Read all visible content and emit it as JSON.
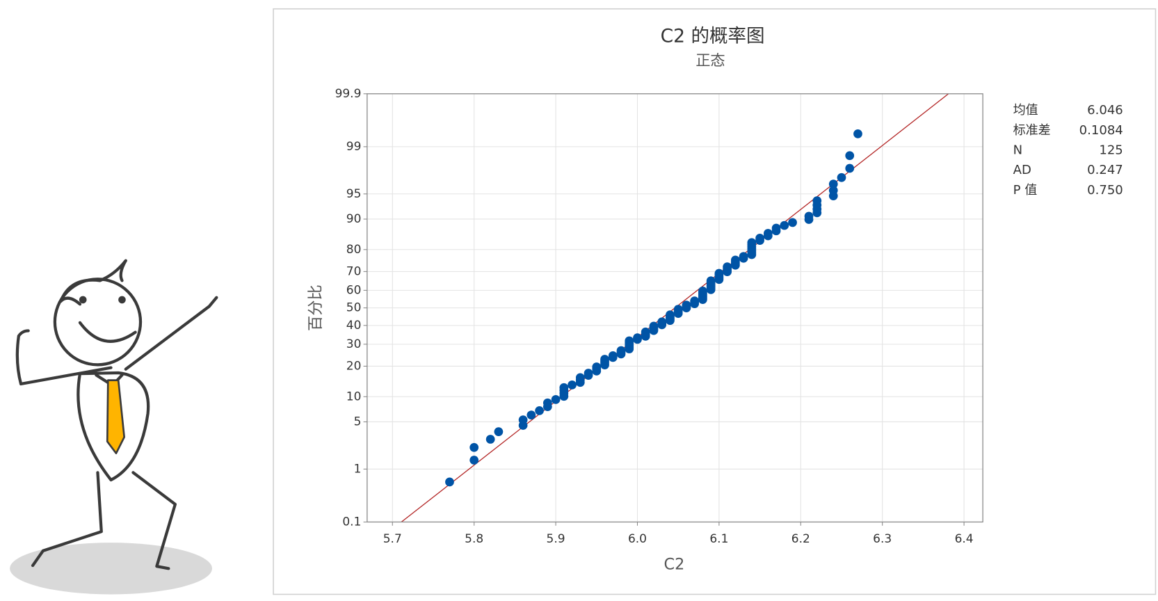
{
  "chart_data": {
    "type": "probability",
    "title": "C2 的概率图",
    "subtitle": "正态",
    "x_label": "C2",
    "y_label": "百分比",
    "x": [
      5.77,
      5.8,
      5.8,
      5.82,
      5.83,
      5.86,
      5.86,
      5.87,
      5.88,
      5.89,
      5.89,
      5.9,
      5.91,
      5.91,
      5.91,
      5.91,
      5.92,
      5.93,
      5.93,
      5.93,
      5.94,
      5.94,
      5.95,
      5.95,
      5.95,
      5.96,
      5.96,
      5.96,
      5.96,
      5.97,
      5.97,
      5.98,
      5.98,
      5.98,
      5.99,
      5.99,
      5.99,
      5.99,
      5.99,
      5.99,
      6.0,
      6.0,
      6.01,
      6.01,
      6.01,
      6.01,
      6.02,
      6.02,
      6.02,
      6.02,
      6.03,
      6.03,
      6.03,
      6.04,
      6.04,
      6.04,
      6.04,
      6.04,
      6.05,
      6.05,
      6.05,
      6.05,
      6.06,
      6.06,
      6.06,
      6.07,
      6.07,
      6.07,
      6.08,
      6.08,
      6.08,
      6.08,
      6.08,
      6.08,
      6.08,
      6.09,
      6.09,
      6.09,
      6.09,
      6.09,
      6.09,
      6.09,
      6.1,
      6.1,
      6.1,
      6.1,
      6.1,
      6.11,
      6.11,
      6.11,
      6.11,
      6.12,
      6.12,
      6.12,
      6.12,
      6.13,
      6.13,
      6.14,
      6.14,
      6.14,
      6.14,
      6.14,
      6.14,
      6.14,
      6.15,
      6.15,
      6.16,
      6.16,
      6.17,
      6.17,
      6.18,
      6.19,
      6.21,
      6.21,
      6.22,
      6.22,
      6.22,
      6.22,
      6.24,
      6.24,
      6.24,
      6.25,
      6.26,
      6.26,
      6.27
    ],
    "series": [
      {
        "color": "#0054a6",
        "values": [
          0.6,
          1.4,
          2.2,
          2.9,
          3.7,
          4.5,
          5.3,
          6.1,
          6.9,
          7.7,
          8.5,
          9.3,
          10.1,
          10.9,
          11.7,
          12.5,
          13.3,
          14.1,
          14.9,
          15.7,
          16.5,
          17.3,
          18.1,
          18.9,
          19.7,
          20.5,
          21.3,
          22.1,
          22.9,
          23.7,
          24.5,
          25.3,
          26.1,
          26.9,
          27.7,
          28.5,
          29.3,
          30.1,
          30.9,
          31.7,
          32.5,
          33.3,
          34.1,
          34.8,
          35.6,
          36.4,
          37.2,
          38.0,
          38.8,
          39.6,
          40.4,
          41.2,
          42.0,
          42.8,
          43.6,
          44.4,
          45.2,
          46.0,
          46.8,
          47.6,
          48.4,
          49.2,
          50.0,
          50.8,
          51.6,
          52.4,
          53.2,
          54.0,
          54.8,
          55.6,
          56.4,
          57.2,
          58.0,
          58.8,
          59.6,
          60.4,
          61.2,
          62.0,
          62.8,
          63.6,
          64.4,
          65.2,
          65.9,
          66.7,
          67.5,
          68.3,
          69.1,
          69.9,
          70.7,
          71.5,
          72.3,
          73.1,
          73.9,
          74.7,
          75.5,
          76.3,
          77.1,
          77.9,
          78.7,
          79.5,
          80.3,
          81.1,
          81.9,
          82.7,
          83.5,
          84.3,
          85.1,
          85.9,
          86.7,
          87.5,
          88.3,
          89.1,
          89.9,
          90.7,
          91.5,
          92.3,
          93.1,
          93.9,
          94.7,
          95.5,
          96.3,
          97.0,
          97.8,
          98.6,
          99.4
        ]
      }
    ],
    "fit_line": {
      "x": [
        5.711,
        6.381
      ],
      "y": [
        0.1,
        99.9
      ],
      "color": "#b22222"
    },
    "xlim": [
      5.669,
      6.423
    ],
    "xticks": [
      5.7,
      5.8,
      5.9,
      {
        "value": 6,
        "label": "6.0"
      },
      6.1,
      6.2,
      6.3,
      6.4
    ],
    "ylim": [
      0.1,
      99.9
    ],
    "yticks": [
      0.1,
      1,
      5,
      10,
      20,
      30,
      40,
      50,
      60,
      70,
      80,
      90,
      95,
      99,
      99.9
    ],
    "y_scale": "probit",
    "grid": true,
    "stats": [
      {
        "label": "均值",
        "value": "6.046"
      },
      {
        "label": "标准差",
        "value": "0.1084"
      },
      {
        "label": "N",
        "value": "125"
      },
      {
        "label": "AD",
        "value": "0.247"
      },
      {
        "label": "P 值",
        "value": "0.750"
      }
    ]
  }
}
